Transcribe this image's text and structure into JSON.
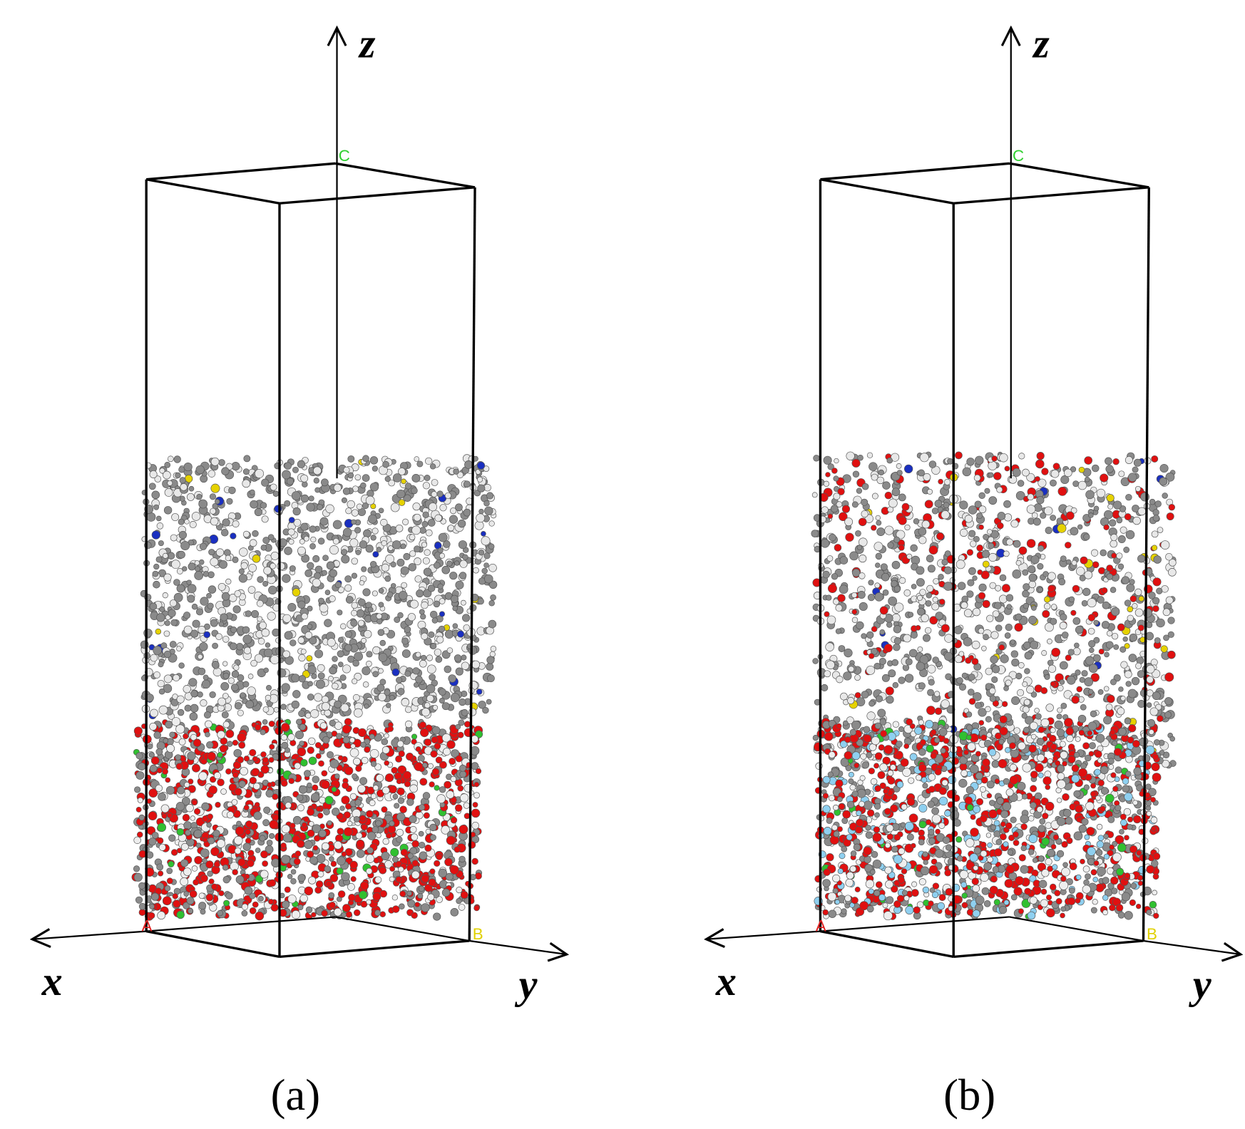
{
  "panels": [
    {
      "axes": {
        "x": "x",
        "y": "y",
        "z": "z"
      },
      "cell_labels": {
        "a": "A",
        "b": "B",
        "c": "C"
      },
      "caption": "(a)"
    },
    {
      "axes": {
        "x": "x",
        "y": "y",
        "z": "z"
      },
      "cell_labels": {
        "a": "A",
        "b": "B",
        "c": "C"
      },
      "caption": "(b)"
    }
  ]
}
